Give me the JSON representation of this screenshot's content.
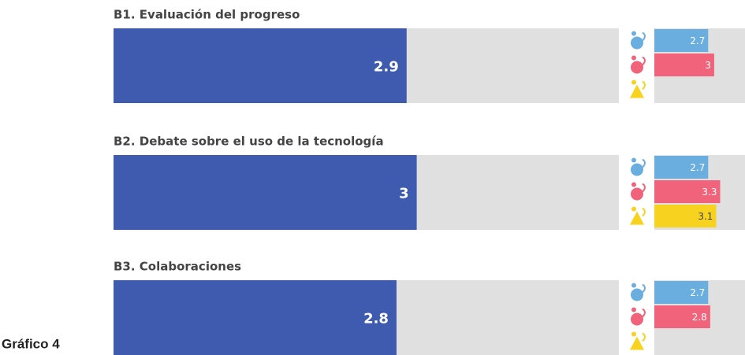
{
  "caption": "Gráfico 4",
  "chart_data": {
    "type": "bar",
    "categories": [
      "B1. Evaluación del progreso",
      "B2. Debate sobre el uso de la tecnología",
      "B3. Colaboraciones"
    ],
    "values": [
      2.9,
      3,
      2.8
    ],
    "color": "#3f5bb0",
    "xlim": [
      0,
      5
    ],
    "series": [
      {
        "color": "#6aaee0",
        "values": [
          2.7,
          2.7,
          2.7
        ]
      },
      {
        "color": "#f0637a",
        "values": [
          3,
          3.3,
          2.8
        ]
      },
      {
        "color": "#f7d21e",
        "values": [
          null,
          3.1,
          null
        ]
      }
    ]
  }
}
